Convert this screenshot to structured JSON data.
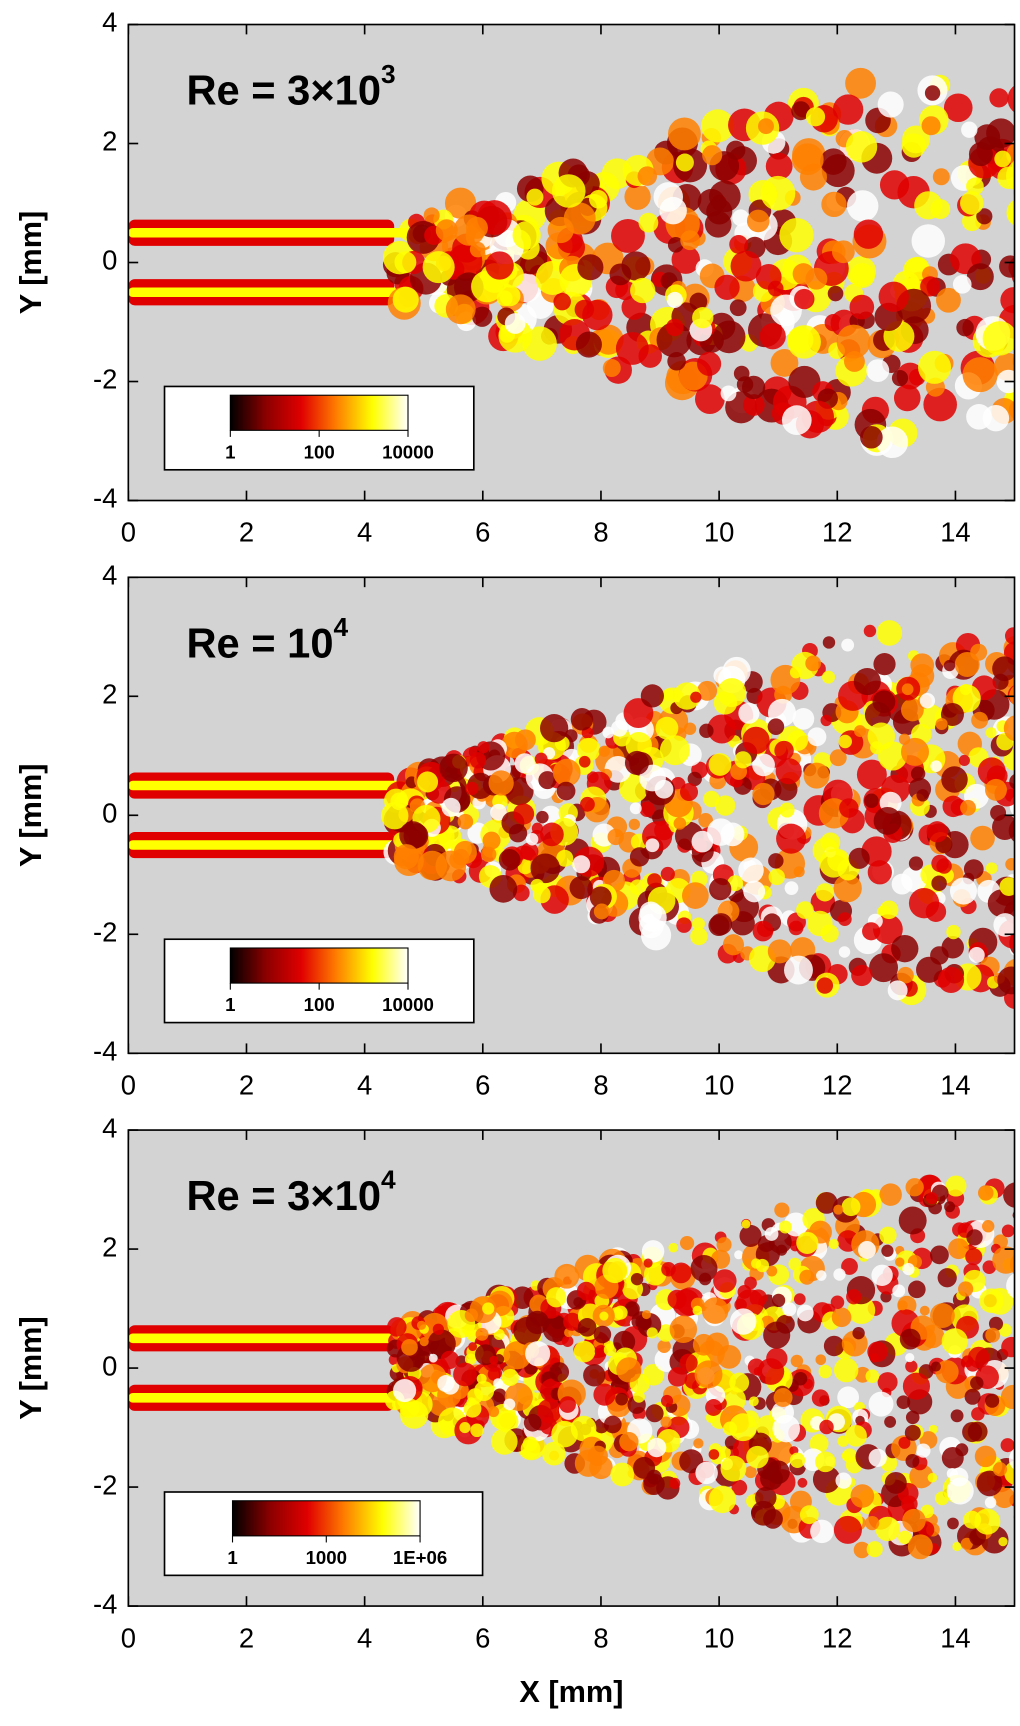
{
  "chart_data": [
    {
      "type": "heatmap",
      "title": "Re = 3×10",
      "title_exponent": "3",
      "ylabel": "Y [mm]",
      "xlim": [
        0,
        15
      ],
      "ylim": [
        -4,
        4
      ],
      "xticks": [
        0,
        2,
        4,
        6,
        8,
        10,
        12,
        14
      ],
      "yticks": [
        -4,
        -2,
        0,
        2,
        4
      ],
      "background": "#d3d3d3",
      "colorbar": {
        "scale": "log",
        "lim": [
          1,
          10000
        ],
        "ticks": [
          1,
          100,
          10000
        ],
        "colors": [
          "#000000",
          "#8b0000",
          "#e00000",
          "#ff8000",
          "#ffff00",
          "#ffffff"
        ]
      }
    },
    {
      "type": "heatmap",
      "title": "Re = 10",
      "title_exponent": "4",
      "ylabel": "Y [mm]",
      "xlim": [
        0,
        15
      ],
      "ylim": [
        -4,
        4
      ],
      "xticks": [
        0,
        2,
        4,
        6,
        8,
        10,
        12,
        14
      ],
      "yticks": [
        -4,
        -2,
        0,
        2,
        4
      ],
      "background": "#d3d3d3",
      "colorbar": {
        "scale": "log",
        "lim": [
          1,
          10000
        ],
        "ticks": [
          1,
          100,
          10000
        ],
        "colors": [
          "#000000",
          "#8b0000",
          "#e00000",
          "#ff8000",
          "#ffff00",
          "#ffffff"
        ]
      }
    },
    {
      "type": "heatmap",
      "title": "Re = 3×10",
      "title_exponent": "4",
      "ylabel": "Y [mm]",
      "xlabel": "X [mm]",
      "xlim": [
        0,
        15
      ],
      "ylim": [
        -4,
        4
      ],
      "xticks": [
        0,
        2,
        4,
        6,
        8,
        10,
        12,
        14
      ],
      "yticks": [
        -4,
        -2,
        0,
        2,
        4
      ],
      "background": "#d3d3d3",
      "colorbar": {
        "scale": "log",
        "lim": [
          1,
          1000000
        ],
        "ticks": [
          1,
          1000,
          {
            "value": 1000000,
            "label": "1E+06"
          }
        ],
        "colors": [
          "#000000",
          "#8b0000",
          "#e00000",
          "#ff8000",
          "#ffff00",
          "#ffffff"
        ]
      }
    }
  ]
}
